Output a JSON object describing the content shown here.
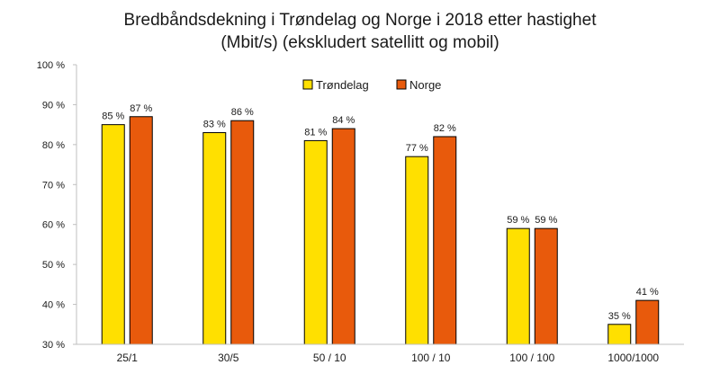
{
  "chart_data": {
    "type": "bar",
    "title_lines": [
      "Bredbåndsdekning  i Trøndelag og Norge i 2018 etter hastighet",
      "(Mbit/s)  (ekskludert satellitt og mobil)"
    ],
    "categories": [
      "25/1",
      "30/5",
      "50 / 10",
      "100 / 10",
      "100 / 100",
      "1000/1000"
    ],
    "series": [
      {
        "name": "Trøndelag",
        "values": [
          85,
          83,
          81,
          77,
          59,
          35
        ],
        "labels": [
          "85 %",
          "83 %",
          "81 %",
          "77 %",
          "59 %",
          "35 %"
        ],
        "color": "#FFE000"
      },
      {
        "name": "Norge",
        "values": [
          87,
          86,
          84,
          82,
          59,
          41
        ],
        "labels": [
          "87 %",
          "86 %",
          "84 %",
          "82 %",
          "59 %",
          "41 %"
        ],
        "color": "#E85A0C"
      }
    ],
    "ylim": [
      30,
      100
    ],
    "yticks": [
      30,
      40,
      50,
      60,
      70,
      80,
      90,
      100
    ],
    "ytick_labels": [
      "30 %",
      "40 %",
      "50 %",
      "60 %",
      "70 %",
      "80 %",
      "90 %",
      "100 %"
    ],
    "grid": false,
    "legend_position": "top-center",
    "bar_stroke": "#000000"
  }
}
